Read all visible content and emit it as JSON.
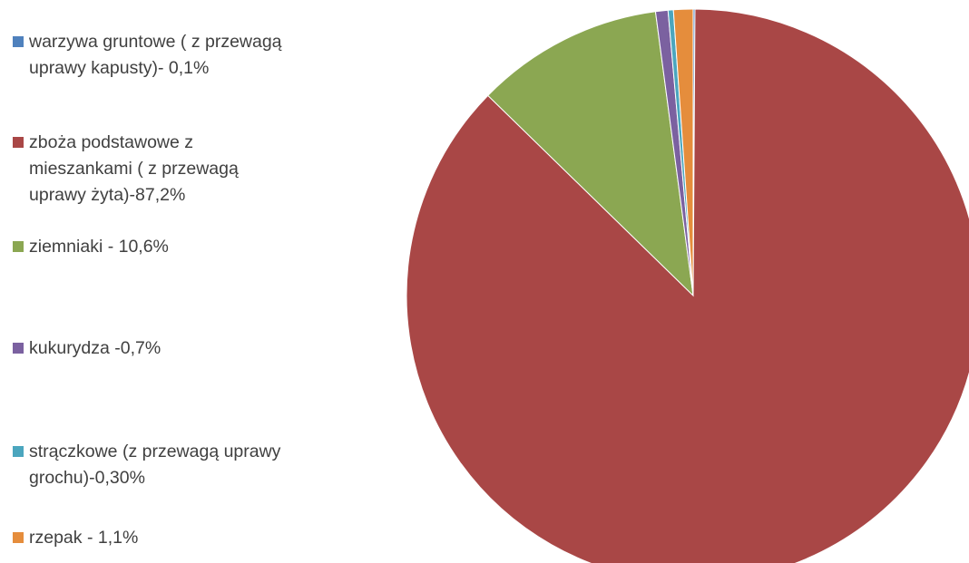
{
  "chart_data": {
    "type": "pie",
    "title": "",
    "slices": [
      {
        "label": "warzywa gruntowe ( z przewagą\nuprawy kapusty)- 0,1%",
        "value": 0.1,
        "color": "#4F81BD"
      },
      {
        "label": "zboża podstawowe z\nmieszankami ( z przewagą\nuprawy żyta)-87,2%",
        "value": 87.2,
        "color": "#A94746"
      },
      {
        "label": "ziemniaki - 10,6%",
        "value": 10.6,
        "color": "#8BA752"
      },
      {
        "label": "kukurydza -0,7%",
        "value": 0.7,
        "color": "#7B61A0"
      },
      {
        "label": "strączkowe (z przewagą uprawy\ngrochu)-0,30%",
        "value": 0.3,
        "color": "#4BA6BE"
      },
      {
        "label": "rzepak - 1,1%",
        "value": 1.1,
        "color": "#E58D3C"
      }
    ],
    "legend": "left",
    "start_angle_deg": 0,
    "direction": "clockwise"
  }
}
